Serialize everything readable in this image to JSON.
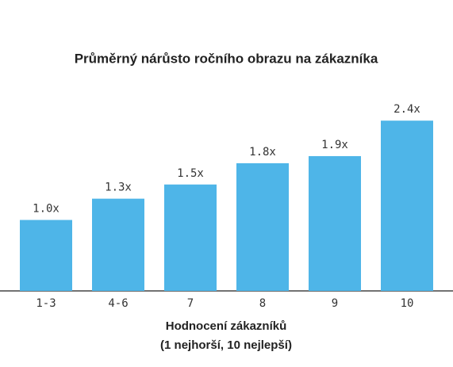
{
  "chart_data": {
    "type": "bar",
    "title": "Průměrný nárůsto ročního obrazu na zákazníka",
    "x_label": [
      "Hodnocení zákazníků",
      "(1 nejhorší, 10 nejlepší)"
    ],
    "categories": [
      "1-3",
      "4-6",
      "7",
      "8",
      "9",
      "10"
    ],
    "values": [
      1.0,
      1.3,
      1.5,
      1.8,
      1.9,
      2.4
    ],
    "value_labels": [
      "1.0x",
      "1.3x",
      "1.5x",
      "1.8x",
      "1.9x",
      "2.4x"
    ],
    "color": "#4eb5e8"
  }
}
